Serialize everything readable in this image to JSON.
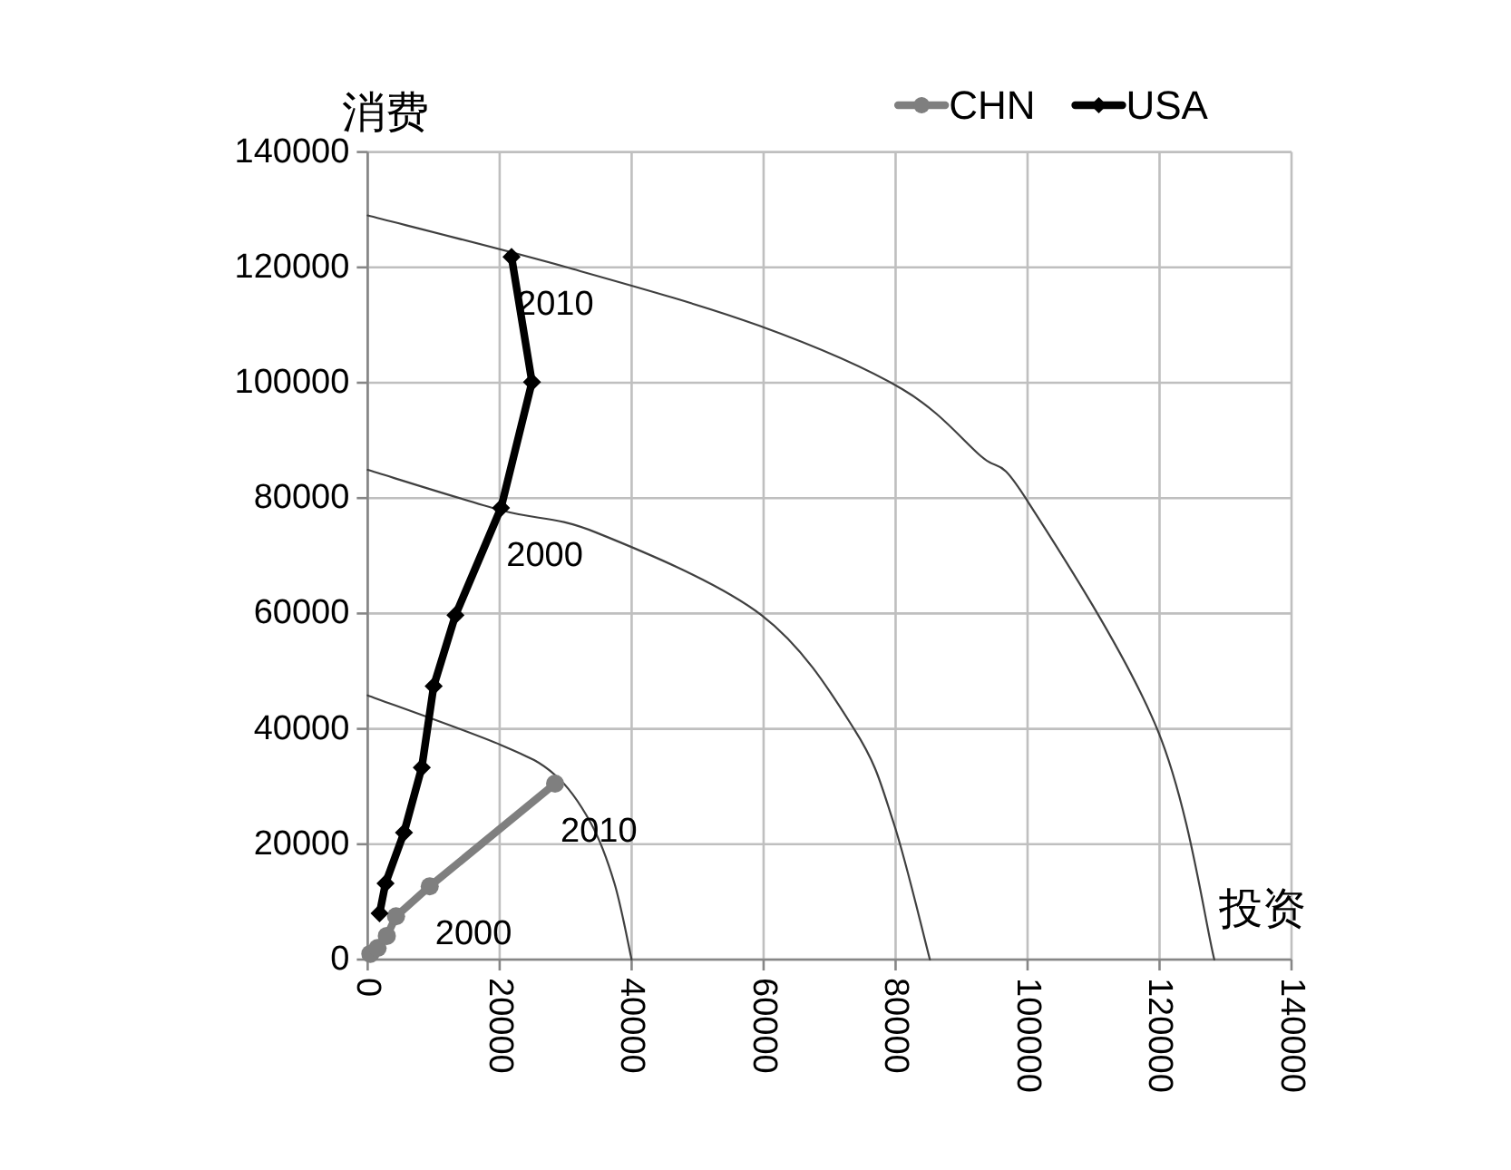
{
  "chart_data": {
    "type": "line",
    "xlabel": "投资",
    "ylabel": "消费",
    "xlim": [
      0,
      140000
    ],
    "ylim": [
      0,
      140000
    ],
    "xticks": [
      0,
      20000,
      40000,
      60000,
      80000,
      100000,
      120000,
      140000
    ],
    "yticks": [
      0,
      20000,
      40000,
      60000,
      80000,
      100000,
      120000,
      140000
    ],
    "grid": true,
    "legend": "top right",
    "series": [
      {
        "name": "CHN",
        "color": "#7f7f7f",
        "marker": "circle",
        "x": [
          400,
          1500,
          2900,
          4300,
          9400,
          28400
        ],
        "values": [
          1000,
          2000,
          4100,
          7500,
          12700,
          30500
        ]
      },
      {
        "name": "USA",
        "color": "#000000",
        "marker": "diamond",
        "x": [
          1800,
          2700,
          5500,
          8200,
          10000,
          13300,
          20200,
          24900,
          21800
        ],
        "values": [
          8000,
          13200,
          22000,
          33300,
          47400,
          59700,
          78300,
          100100,
          121800
        ]
      },
      {
        "color": "#404040",
        "marker": "none",
        "x": [
          0,
          20200,
          28400,
          33800,
          37400,
          40000
        ],
        "values": [
          45800,
          37200,
          32000,
          23700,
          13200,
          0
        ]
      },
      {
        "color": "#404040",
        "marker": "none",
        "x": [
          0,
          20200,
          34700,
          59700,
          73800,
          79700,
          85200
        ],
        "values": [
          84900,
          77900,
          74000,
          59700,
          39800,
          23700,
          0
        ]
      },
      {
        "color": "#404040",
        "marker": "none",
        "x": [
          0,
          30200,
          59300,
          81000,
          92900,
          99700,
          119700,
          128300
        ],
        "values": [
          129000,
          120000,
          109900,
          98900,
          87300,
          80000,
          39800,
          0
        ]
      }
    ],
    "annotations": [
      {
        "text": "2010",
        "x": 21800,
        "y": 121800
      },
      {
        "text": "2000",
        "x": 20200,
        "y": 78300
      },
      {
        "text": "2010",
        "x": 28400,
        "y": 30500
      },
      {
        "text": "2000",
        "x": 9400,
        "y": 12700
      }
    ]
  }
}
